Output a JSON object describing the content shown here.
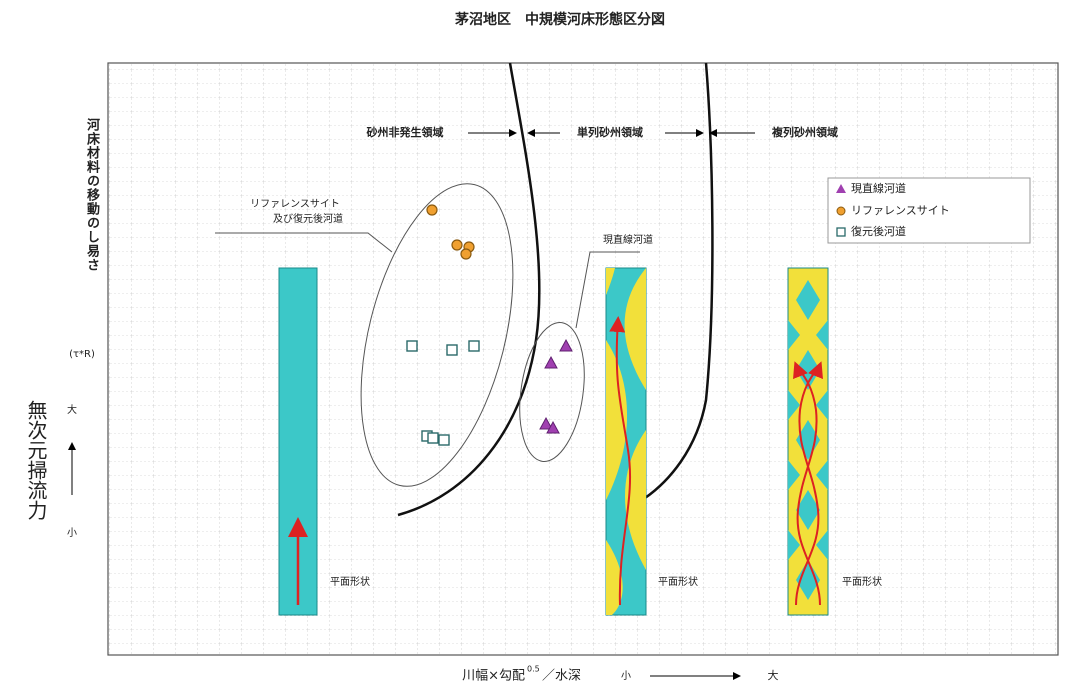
{
  "header": {
    "title": "茅沼地区　中規模河床形態区分図"
  },
  "y_axis": {
    "label": "河床材料の移動のし易さ",
    "symbol": "(τ*R)",
    "outer_label": "無次元掃流力",
    "high": "大",
    "low": "小"
  },
  "x_axis": {
    "label_main": "川幅×勾配",
    "exponent": "0.5",
    "label_tail": "／水深",
    "low": "小",
    "high": "大"
  },
  "regions": [
    "砂州非発生領域",
    "単列砂州領域",
    "複列砂州領域"
  ],
  "callouts": {
    "reference": [
      "リファレンスサイト",
      "及び復元後河道"
    ],
    "straight": "現直線河道"
  },
  "legend": [
    "現直線河道",
    "リファレンスサイト",
    "復元後河道"
  ],
  "panels": [
    "平面形状",
    "平面形状",
    "平面形状"
  ]
}
